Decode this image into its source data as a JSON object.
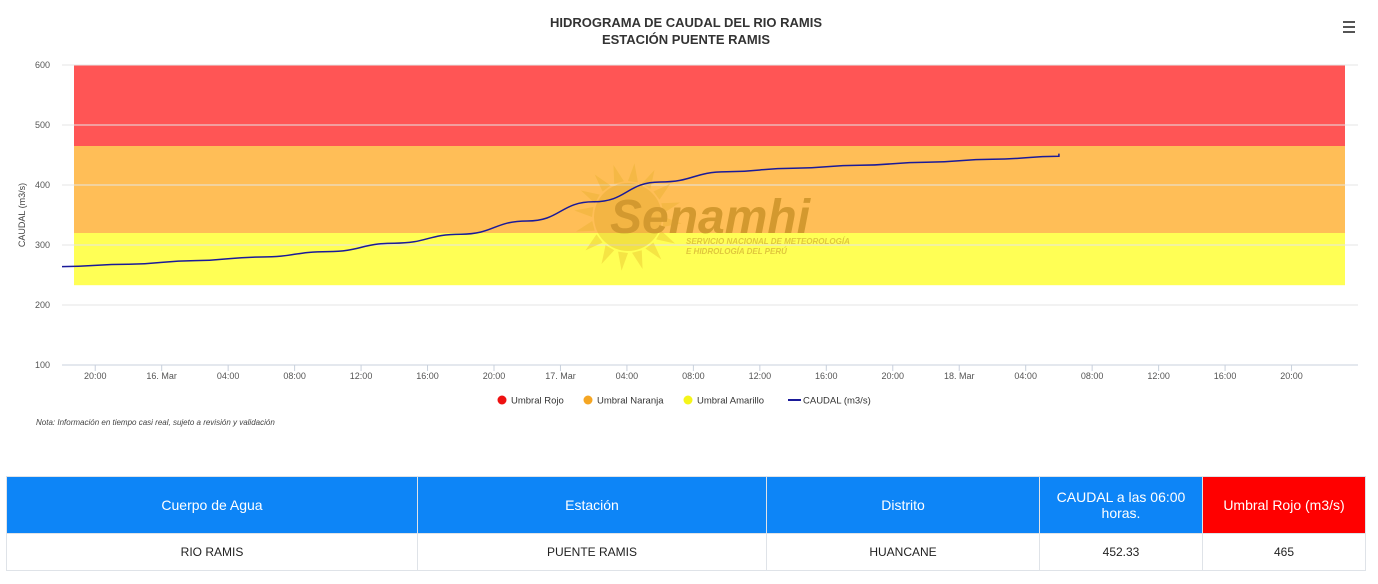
{
  "chart_data": {
    "type": "line",
    "title": "HIDROGRAMA DE CAUDAL DEL RIO RAMIS",
    "subtitle": "ESTACIÓN PUENTE RAMIS",
    "ylabel": "CAUDAL (m3/s)",
    "xlabel": "",
    "ylim": [
      100,
      600
    ],
    "y_ticks": [
      "100",
      "200",
      "300",
      "400",
      "500",
      "600"
    ],
    "x_ticks": [
      {
        "label": "20:00",
        "t": -4
      },
      {
        "label": "16. Mar",
        "t": 0
      },
      {
        "label": "04:00",
        "t": 4
      },
      {
        "label": "08:00",
        "t": 8
      },
      {
        "label": "12:00",
        "t": 12
      },
      {
        "label": "16:00",
        "t": 16
      },
      {
        "label": "20:00",
        "t": 20
      },
      {
        "label": "17. Mar",
        "t": 24
      },
      {
        "label": "04:00",
        "t": 28
      },
      {
        "label": "08:00",
        "t": 32
      },
      {
        "label": "12:00",
        "t": 36
      },
      {
        "label": "16:00",
        "t": 40
      },
      {
        "label": "20:00",
        "t": 44
      },
      {
        "label": "18. Mar",
        "t": 48
      },
      {
        "label": "04:00",
        "t": 52
      },
      {
        "label": "08:00",
        "t": 56
      },
      {
        "label": "12:00",
        "t": 60
      },
      {
        "label": "16:00",
        "t": 64
      },
      {
        "label": "20:00",
        "t": 68
      }
    ],
    "x_range": [
      -6,
      72
    ],
    "grid": true,
    "legend_position": "bottom-center",
    "bands": [
      {
        "name": "Umbral Rojo",
        "from": 465,
        "to": 600,
        "color": "#ff5555"
      },
      {
        "name": "Umbral Naranja",
        "from": 320,
        "to": 465,
        "color": "#ffbe57"
      },
      {
        "name": "Umbral Amarillo",
        "from": 233,
        "to": 320,
        "color": "#ffff55"
      }
    ],
    "series": [
      {
        "name": "CAUDAL (m3/s)",
        "color": "#1a1a99",
        "points": [
          [
            -6,
            264
          ],
          [
            -2,
            268
          ],
          [
            2,
            274
          ],
          [
            6,
            280
          ],
          [
            10,
            289
          ],
          [
            14,
            303
          ],
          [
            18,
            318
          ],
          [
            22,
            340
          ],
          [
            26,
            372
          ],
          [
            30,
            405
          ],
          [
            34,
            422
          ],
          [
            38,
            428
          ],
          [
            42,
            433
          ],
          [
            46,
            438
          ],
          [
            50,
            443
          ],
          [
            54,
            448
          ],
          [
            54,
            452.33
          ]
        ]
      }
    ],
    "legend": [
      {
        "label": "Umbral Rojo",
        "color": "#ee1111"
      },
      {
        "label": "Umbral Naranja",
        "color": "#f5a623"
      },
      {
        "label": "Umbral Amarillo",
        "color": "#f5f51a"
      },
      {
        "label": "CAUDAL (m3/s)",
        "color": "#1a1a99"
      }
    ]
  },
  "watermark": {
    "text": "Senamhi",
    "line1": "SERVICIO NACIONAL DE METEOROLOGÍA",
    "line2": "E HIDROLOGÍA DEL PERÚ"
  },
  "note": "Nota: Información en tiempo casi real, sujeto a revisión y validación",
  "table": {
    "headers": [
      "Cuerpo de Agua",
      "Estación",
      "Distrito",
      "CAUDAL a las 06:00 horas.",
      "Umbral Rojo (m3/s)"
    ],
    "row": [
      "RIO RAMIS",
      "PUENTE RAMIS",
      "HUANCANE",
      "452.33",
      "465"
    ]
  }
}
